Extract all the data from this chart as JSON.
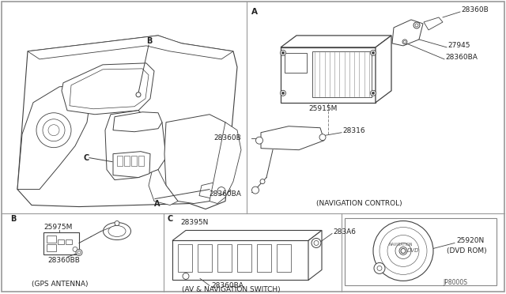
{
  "bg_color": "#ffffff",
  "line_color": "#404040",
  "text_color": "#222222",
  "border_color": "#888888",
  "fig_width": 6.4,
  "fig_height": 3.72,
  "dpi": 100,
  "parts": {
    "28360B_top": "28360B",
    "27945": "27945",
    "28360BA_top": "28360BA",
    "25915M": "25915M",
    "28316": "28316",
    "28360B_mid": "28360B",
    "28360BA_mid": "28360BA",
    "nav_control": "(NAVIGATION CONTROL)",
    "A_label": "A",
    "B_label": "B",
    "C_label": "C",
    "25975M": "25975M",
    "28360BB": "28360BB",
    "gps_antenna": "(GPS ANTENNA)",
    "28395N": "28395N",
    "283A6": "283A6",
    "28360BA_bot": "28360BA",
    "av_nav": "(AV & NAVIGATION SWITCH)",
    "25920N": "25920N",
    "dvd_rom": "(DVD ROM)",
    "jp_code": "JP8000S"
  }
}
